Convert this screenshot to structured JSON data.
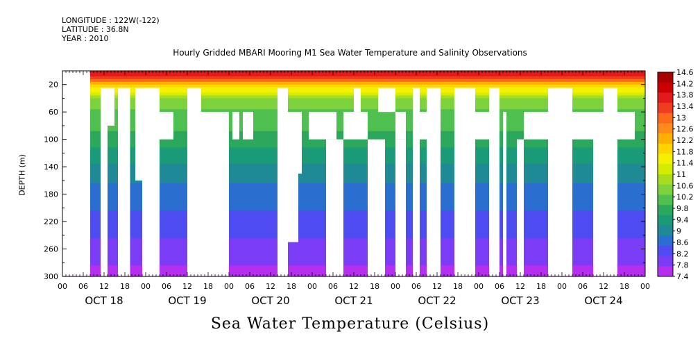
{
  "header": {
    "longitude": "LONGITUDE : 122W(-122)",
    "latitude": "LATITUDE : 36.8N",
    "year": "YEAR : 2010"
  },
  "chart_data": {
    "type": "heatmap",
    "title": "Hourly Gridded MBARI Mooring M1 Sea Water Temperature and Salinity Observations",
    "xlabel": "Sea Water Temperature (Celsius)",
    "ylabel": "DEPTH (m)",
    "x_range_hours": [
      0,
      168
    ],
    "y_range_depth_m": [
      300,
      0
    ],
    "y_ticks": [
      20,
      60,
      100,
      140,
      180,
      220,
      260,
      300
    ],
    "x_hour_ticks": [
      "00",
      "06",
      "12",
      "18",
      "00",
      "06",
      "12",
      "18",
      "00",
      "06",
      "12",
      "18",
      "00",
      "06",
      "12",
      "18",
      "00",
      "06",
      "12",
      "18",
      "00",
      "06",
      "12",
      "18",
      "00",
      "06",
      "12",
      "18",
      "00"
    ],
    "days": [
      "OCT 18",
      "OCT 19",
      "OCT 20",
      "OCT 21",
      "OCT 22",
      "OCT 23",
      "OCT 24"
    ],
    "colorbar": {
      "min": 7.4,
      "max": 14.6,
      "step": 0.4,
      "labels": [
        "14.6",
        "14.2",
        "13.8",
        "13.4",
        "13",
        "12.6",
        "12.2",
        "11.8",
        "11.4",
        "11",
        "10.6",
        "10.2",
        "9.8",
        "9.4",
        "9",
        "8.6",
        "8.2",
        "7.8",
        "7.4"
      ],
      "colors": [
        "#aa0000",
        "#cc0000",
        "#e31a1c",
        "#f03b20",
        "#fc6a1a",
        "#ff8c1a",
        "#ffb000",
        "#ffd400",
        "#f5f000",
        "#d4ec00",
        "#a8dc1e",
        "#7ed23c",
        "#4fc050",
        "#2ca85c",
        "#1b9a78",
        "#1f8a96",
        "#2a6ed0",
        "#4c4cf0",
        "#7a3cf4",
        "#b430ee"
      ]
    },
    "profile_by_depth": {
      "depth_m": [
        5,
        20,
        40,
        60,
        80,
        100,
        140,
        180,
        220,
        260,
        300
      ],
      "temp_c": [
        13.8,
        12.2,
        10.6,
        10.2,
        10.0,
        9.8,
        9.1,
        8.7,
        8.3,
        8.0,
        7.6
      ]
    },
    "missing_data": "white gaps where no observations"
  }
}
